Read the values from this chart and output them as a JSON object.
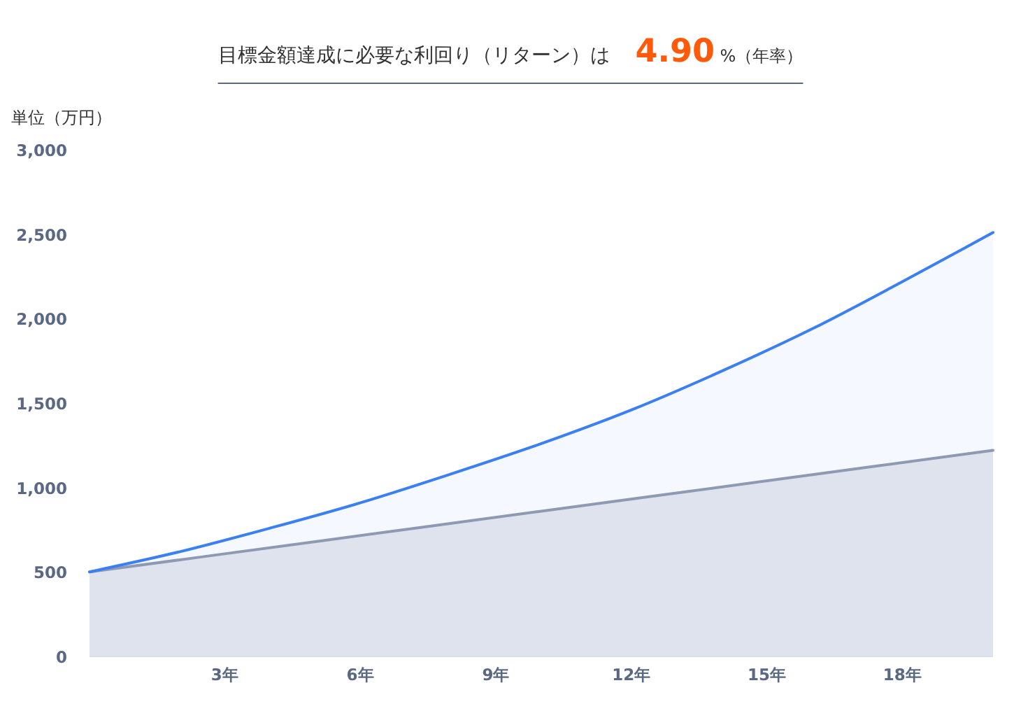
{
  "chart_data": {
    "type": "area",
    "title": "目標金額達成に必要な利回り（リターン）は 4.90 %（年率）",
    "ylabel": "単位（万円）",
    "xlim": [
      0,
      20
    ],
    "xticks": [
      {
        "value": 3,
        "label": "3年"
      },
      {
        "value": 6,
        "label": "6年"
      },
      {
        "value": 9,
        "label": "9年"
      },
      {
        "value": 12,
        "label": "12年"
      },
      {
        "value": 15,
        "label": "15年"
      },
      {
        "value": 18,
        "label": "18年"
      }
    ],
    "ylim": [
      0,
      3000
    ],
    "yticks": [
      0,
      500,
      {
        "value": 1000,
        "label": "1,000"
      },
      {
        "value": 1500,
        "label": "1,500"
      },
      {
        "value": 2000,
        "label": "2,000"
      },
      {
        "value": 2500,
        "label": "2,500"
      },
      {
        "value": 3000,
        "label": "3,000"
      }
    ],
    "series": [
      {
        "color": "#3b7ff5",
        "x": [
          0,
          2,
          4,
          6,
          8,
          10,
          12,
          14,
          16,
          18,
          20
        ],
        "values": [
          500,
          620,
          760,
          910,
          1080,
          1260,
          1460,
          1690,
          1940,
          2220,
          2510
        ]
      },
      {
        "color": "#8e9ab4",
        "x": [
          0,
          5,
          10,
          15,
          20
        ],
        "values": [
          500,
          680,
          860,
          1040,
          1220
        ]
      }
    ]
  }
}
